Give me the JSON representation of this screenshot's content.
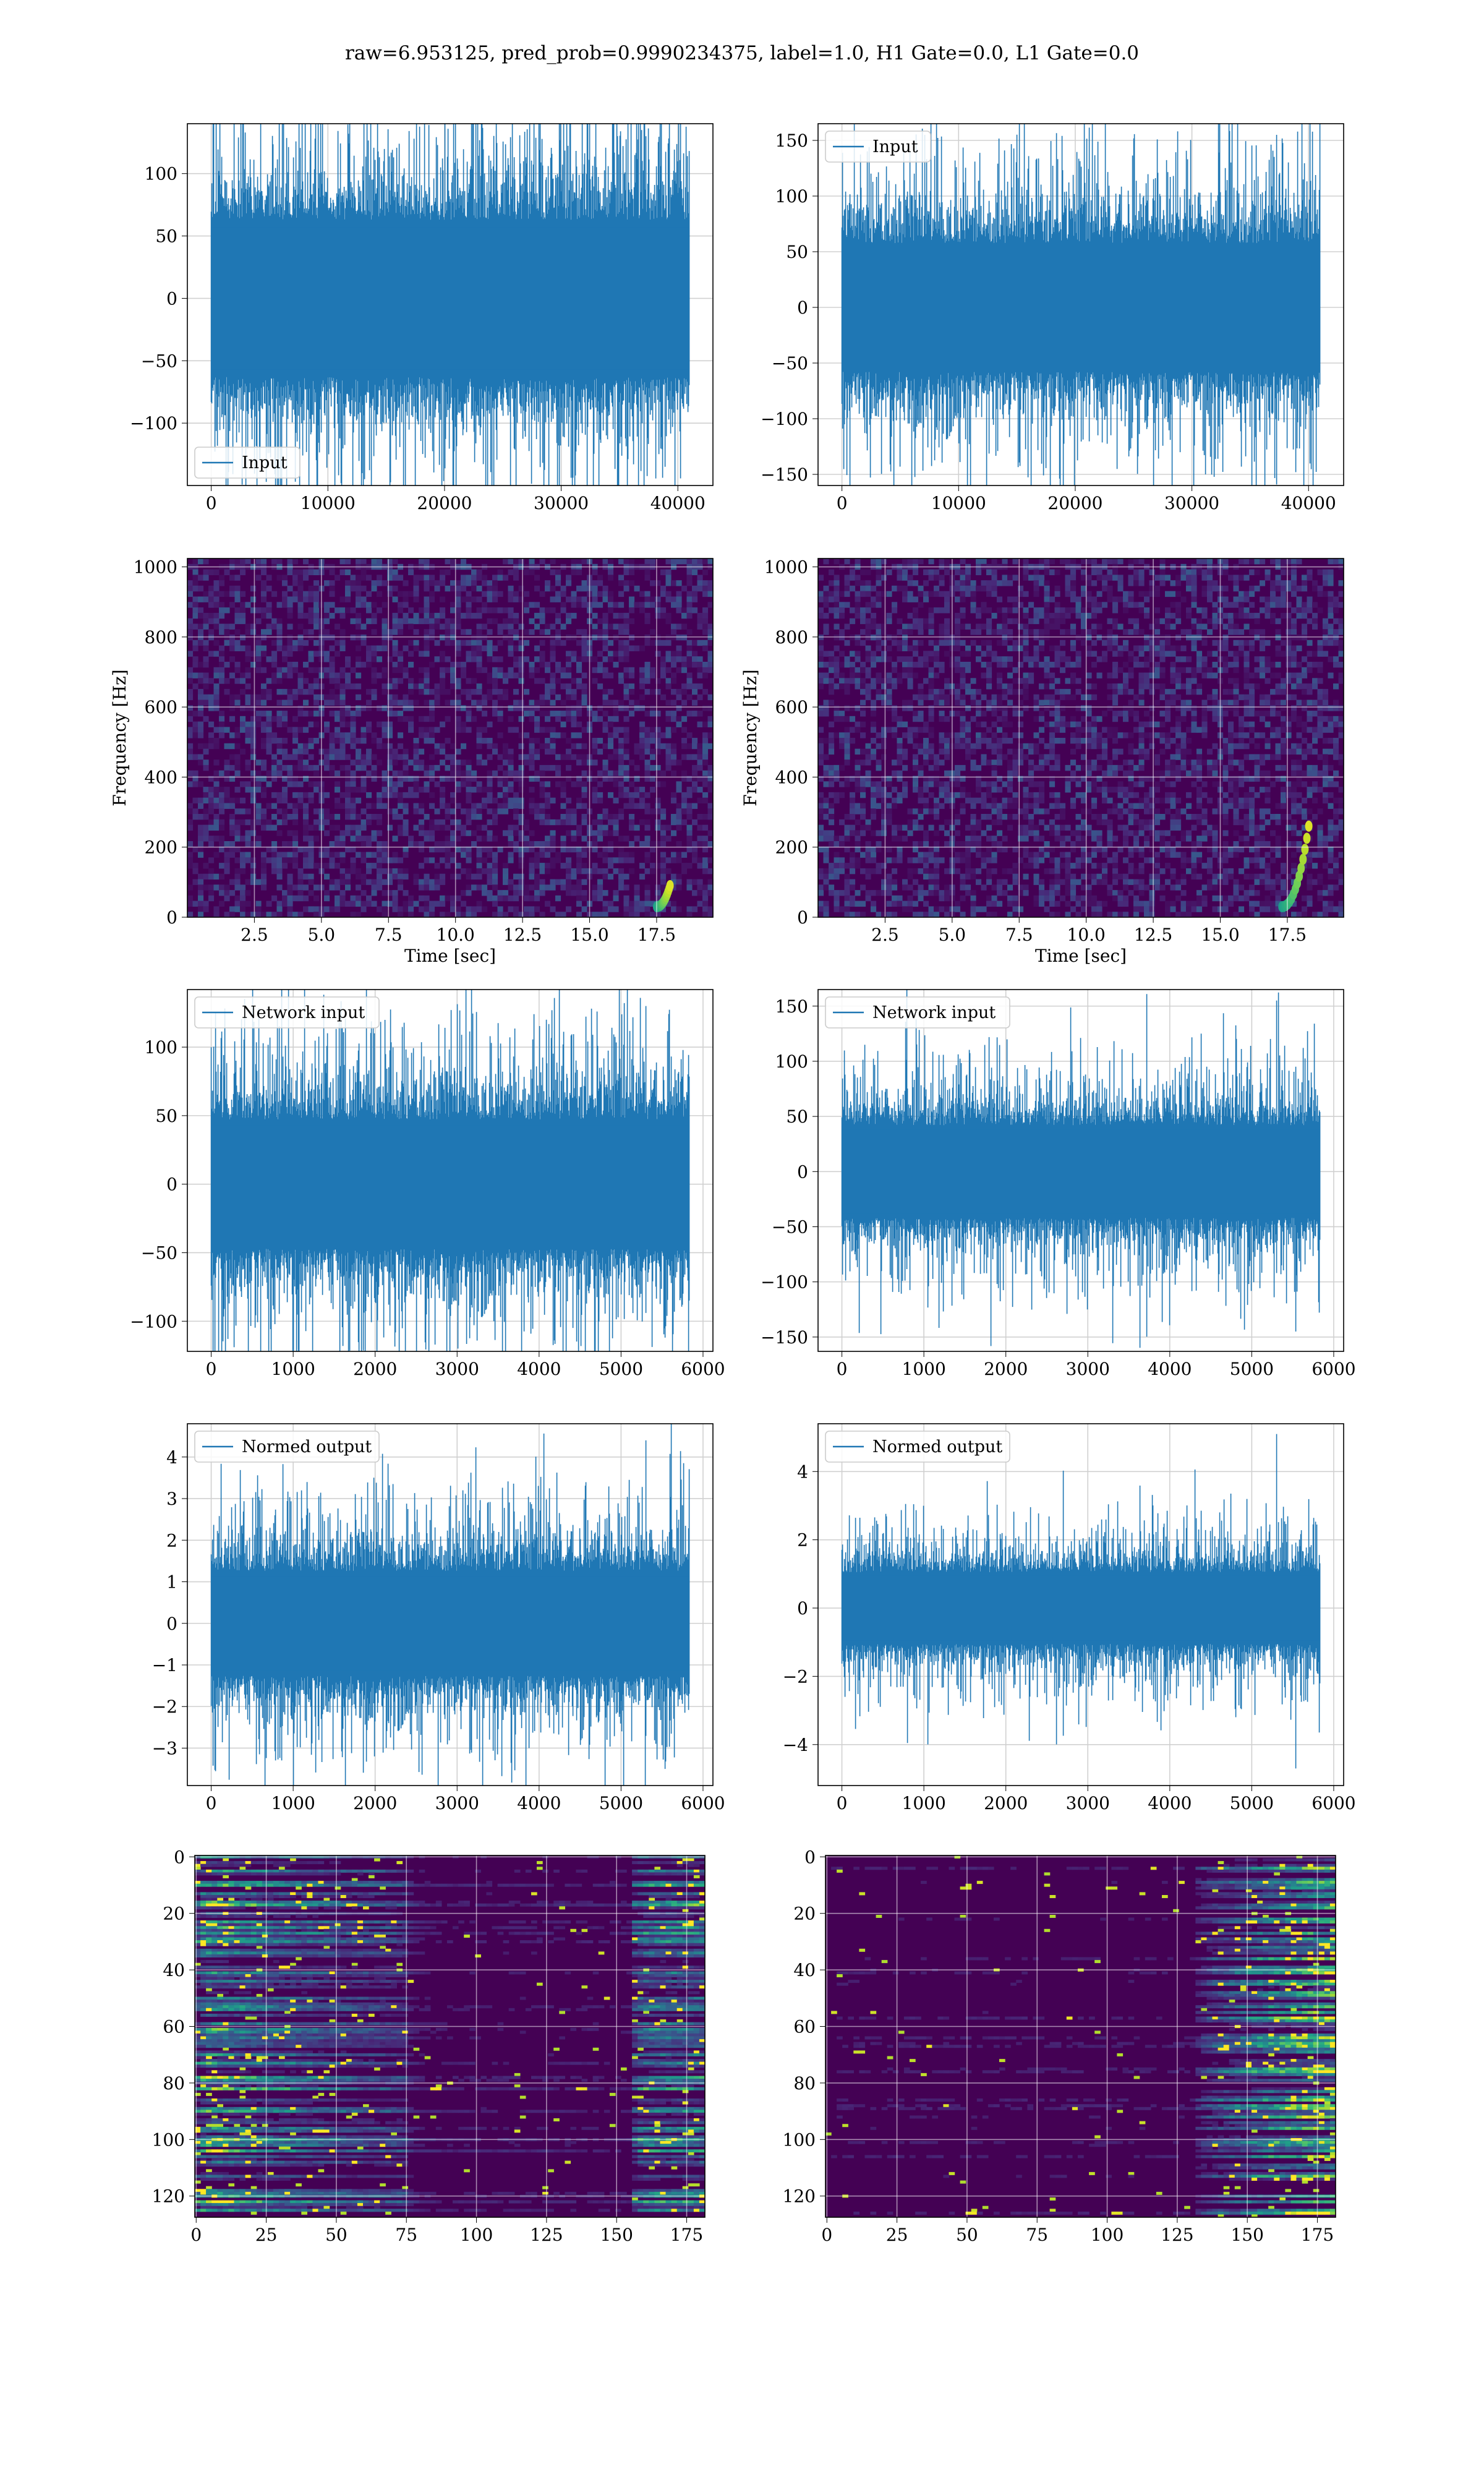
{
  "figure": {
    "title": "raw=6.953125, pred_prob=0.9990234375, label=1.0, H1 Gate=0.0, L1 Gate=0.0",
    "line_color": "#1f77b4"
  },
  "chart_data": [
    {
      "id": "h1-input",
      "type": "line",
      "series": [
        {
          "name": "Input",
          "x_range": [
            0,
            40960
          ],
          "amplitude_envelope": 60,
          "peaks": [
            130,
            -135
          ]
        }
      ],
      "legend": "lower left",
      "xlim": [
        -2048,
        43008
      ],
      "ylim": [
        -150,
        140
      ],
      "xticks": [
        0,
        10000,
        20000,
        30000,
        40000
      ],
      "yticks": [
        -100,
        -50,
        0,
        50,
        100
      ],
      "xlabel": "",
      "ylabel": "",
      "grid": true
    },
    {
      "id": "l1-input",
      "type": "line",
      "series": [
        {
          "name": "Input",
          "x_range": [
            0,
            40960
          ],
          "amplitude_envelope": 55,
          "peaks": [
            155,
            -148
          ]
        }
      ],
      "legend": "upper left",
      "xlim": [
        -2048,
        43008
      ],
      "ylim": [
        -160,
        165
      ],
      "xticks": [
        0,
        10000,
        20000,
        30000,
        40000
      ],
      "yticks": [
        -150,
        -100,
        -50,
        0,
        50,
        100,
        150
      ],
      "xlabel": "",
      "ylabel": "",
      "grid": true
    },
    {
      "id": "h1-spectrogram",
      "type": "heatmap",
      "colormap": "viridis",
      "xlim": [
        0,
        19.6
      ],
      "ylim": [
        0,
        1024
      ],
      "xticks": [
        2.5,
        5.0,
        7.5,
        10.0,
        12.5,
        15.0,
        17.5
      ],
      "yticks": [
        0,
        200,
        400,
        600,
        800,
        1000
      ],
      "xlabel": "Time [sec]",
      "ylabel": "Frequency [Hz]",
      "grid": true,
      "chirp": {
        "t_start": 17.5,
        "t_end": 18.0,
        "f_start": 30,
        "f_end": 90
      }
    },
    {
      "id": "l1-spectrogram",
      "type": "heatmap",
      "colormap": "viridis",
      "xlim": [
        0,
        19.6
      ],
      "ylim": [
        0,
        1024
      ],
      "xticks": [
        2.5,
        5.0,
        7.5,
        10.0,
        12.5,
        15.0,
        17.5
      ],
      "yticks": [
        0,
        200,
        400,
        600,
        800,
        1000
      ],
      "xlabel": "Time [sec]",
      "ylabel": "Frequency [Hz]",
      "grid": true,
      "chirp": {
        "t_start": 17.3,
        "t_end": 18.3,
        "f_start": 30,
        "f_end": 260
      }
    },
    {
      "id": "h1-network-input",
      "type": "line",
      "series": [
        {
          "name": "Network input",
          "x_range": [
            0,
            5830
          ],
          "amplitude_envelope": 45,
          "peaks": [
            130,
            -112
          ]
        }
      ],
      "legend": "upper left",
      "xlim": [
        -291,
        6121
      ],
      "ylim": [
        -122,
        142
      ],
      "xticks": [
        0,
        1000,
        2000,
        3000,
        4000,
        5000,
        6000
      ],
      "yticks": [
        -100,
        -50,
        0,
        50,
        100
      ],
      "xlabel": "",
      "ylabel": "",
      "grid": true
    },
    {
      "id": "l1-network-input",
      "type": "line",
      "series": [
        {
          "name": "Network input",
          "x_range": [
            0,
            5830
          ],
          "amplitude_envelope": 40,
          "peaks": [
            155,
            -145
          ]
        }
      ],
      "legend": "upper left",
      "xlim": [
        -291,
        6121
      ],
      "ylim": [
        -163,
        165
      ],
      "xticks": [
        0,
        1000,
        2000,
        3000,
        4000,
        5000,
        6000
      ],
      "yticks": [
        -150,
        -100,
        -50,
        0,
        50,
        100,
        150
      ],
      "xlabel": "",
      "ylabel": "",
      "grid": true
    },
    {
      "id": "h1-normed-output",
      "type": "line",
      "series": [
        {
          "name": "Normed output",
          "x_range": [
            0,
            5830
          ],
          "amplitude_envelope": 1.2,
          "peaks": [
            4.4,
            -3.5
          ]
        }
      ],
      "legend": "upper left",
      "xlim": [
        -291,
        6121
      ],
      "ylim": [
        -3.9,
        4.8
      ],
      "xticks": [
        0,
        1000,
        2000,
        3000,
        4000,
        5000,
        6000
      ],
      "yticks": [
        -3,
        -2,
        -1,
        0,
        1,
        2,
        3,
        4
      ],
      "xlabel": "",
      "ylabel": "",
      "grid": true
    },
    {
      "id": "l1-normed-output",
      "type": "line",
      "series": [
        {
          "name": "Normed output",
          "x_range": [
            0,
            5830
          ],
          "amplitude_envelope": 1.0,
          "peaks": [
            5.1,
            -4.7
          ]
        }
      ],
      "legend": "upper left",
      "xlim": [
        -291,
        6121
      ],
      "ylim": [
        -5.2,
        5.4
      ],
      "xticks": [
        0,
        1000,
        2000,
        3000,
        4000,
        5000,
        6000
      ],
      "yticks": [
        -4,
        -2,
        0,
        2,
        4
      ],
      "xlabel": "",
      "ylabel": "",
      "grid": true
    },
    {
      "id": "h1-feature-map",
      "type": "heatmap",
      "colormap": "viridis",
      "xlim": [
        -0.5,
        181.5
      ],
      "ylim": [
        127.5,
        -0.5
      ],
      "xticks": [
        0,
        25,
        50,
        75,
        100,
        125,
        150,
        175
      ],
      "yticks": [
        0,
        20,
        40,
        60,
        80,
        100,
        120
      ],
      "xlabel": "",
      "ylabel": "",
      "grid": true,
      "rows": 128,
      "cols": 182,
      "hot_regions": "left columns 0-75 and right columns 155-181"
    },
    {
      "id": "l1-feature-map",
      "type": "heatmap",
      "colormap": "viridis",
      "xlim": [
        -0.5,
        181.5
      ],
      "ylim": [
        127.5,
        -0.5
      ],
      "xticks": [
        0,
        25,
        50,
        75,
        100,
        125,
        150,
        175
      ],
      "yticks": [
        0,
        20,
        40,
        60,
        80,
        100,
        120
      ],
      "xlabel": "",
      "ylabel": "",
      "grid": true,
      "rows": 128,
      "cols": 182,
      "hot_regions": "right columns 130-181"
    }
  ]
}
